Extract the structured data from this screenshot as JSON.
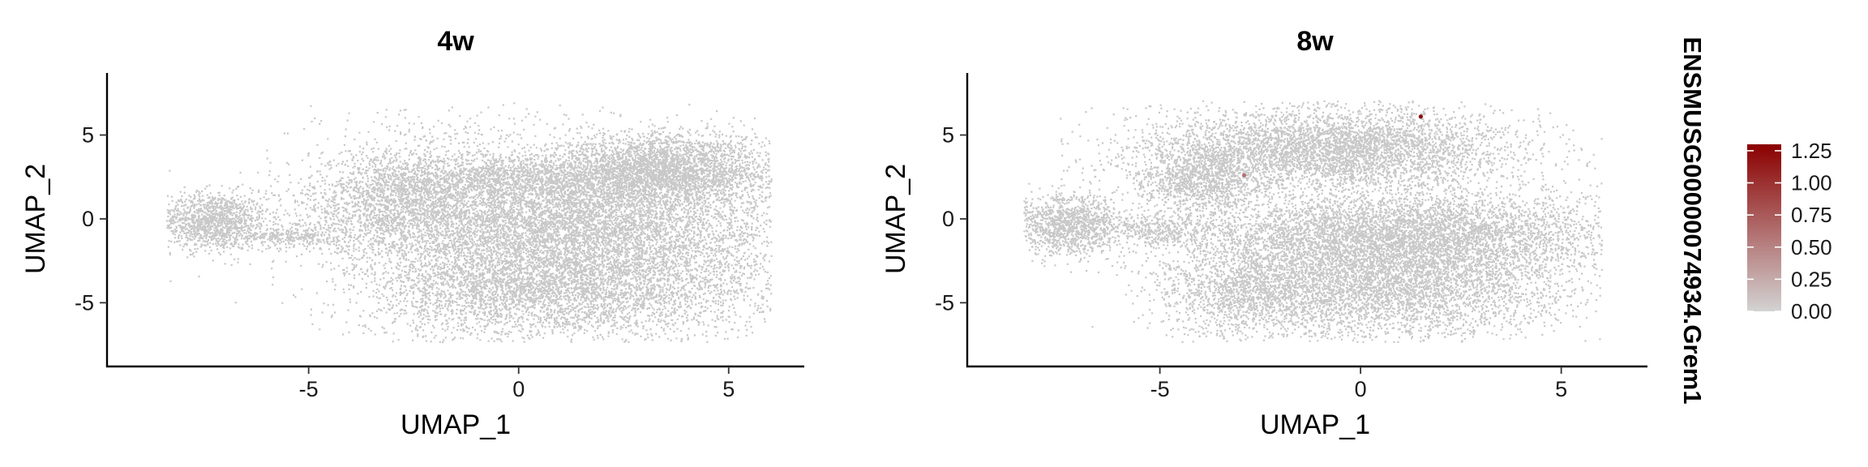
{
  "chart_data": [
    {
      "type": "scatter",
      "title": "4w",
      "xlabel": "UMAP_1",
      "ylabel": "UMAP_2",
      "xlim": [
        -9.8,
        6.8
      ],
      "ylim": [
        -8.8,
        8.7
      ],
      "xticks": [
        -5,
        0,
        5
      ],
      "yticks": [
        -5,
        0,
        5
      ],
      "point_color": "#c8c8c8",
      "highlighted_points": []
    },
    {
      "type": "scatter",
      "title": "8w",
      "xlabel": "UMAP_1",
      "ylabel": "UMAP_2",
      "xlim": [
        -9.8,
        6.3
      ],
      "ylim": [
        -8.8,
        8.7
      ],
      "xticks": [
        -5,
        0,
        5
      ],
      "yticks": [
        -5,
        0,
        5
      ],
      "point_color": "#c8c8c8",
      "highlighted_points": [
        {
          "x": 1.5,
          "y": 6.1,
          "value": 1.25
        },
        {
          "x": -2.9,
          "y": 2.6,
          "value": 0.6
        }
      ]
    }
  ],
  "legend": {
    "title": "ENSMUSG00000074934.Grem1",
    "min": 0,
    "max": 1.3,
    "ticks": [
      "1.25",
      "1.00",
      "0.75",
      "0.50",
      "0.25",
      "0.00"
    ],
    "tick_values": [
      1.25,
      1.0,
      0.75,
      0.5,
      0.25,
      0.0
    ],
    "low_color": "#d3d3d3",
    "high_color": "#8b0000"
  }
}
